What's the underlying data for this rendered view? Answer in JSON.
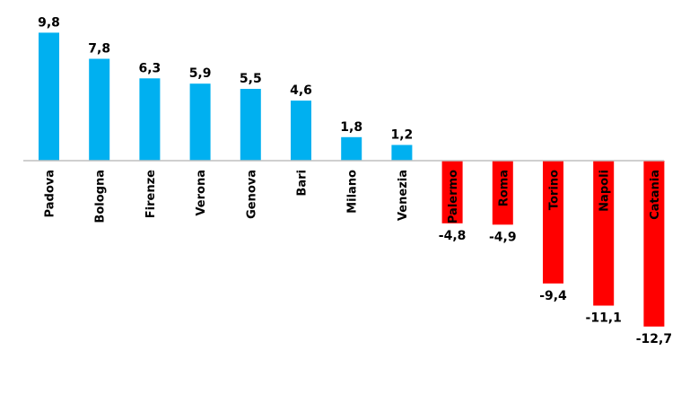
{
  "chart_data": {
    "type": "bar",
    "title": "",
    "xlabel": "",
    "ylabel": "",
    "categories": [
      "Padova",
      "Bologna",
      "Firenze",
      "Verona",
      "Genova",
      "Bari",
      "Milano",
      "Venezia",
      "Palermo",
      "Roma",
      "Torino",
      "Napoli",
      "Catania"
    ],
    "values": [
      9.8,
      7.8,
      6.3,
      5.9,
      5.5,
      4.6,
      1.8,
      1.2,
      -4.8,
      -4.9,
      -9.4,
      -11.1,
      -12.7
    ],
    "value_labels": [
      "9,8",
      "7,8",
      "6,3",
      "5,9",
      "5,5",
      "4,6",
      "1,8",
      "1,2",
      "-4,8",
      "-4,9",
      "-9,4",
      "-11,1",
      "-12,7"
    ],
    "ylim": [
      -14.5,
      12.5
    ],
    "grid": false,
    "legend": "none",
    "colors": {
      "positive": "#00B0F0",
      "negative": "#FF0000",
      "axis": "#BFBFBF"
    }
  }
}
